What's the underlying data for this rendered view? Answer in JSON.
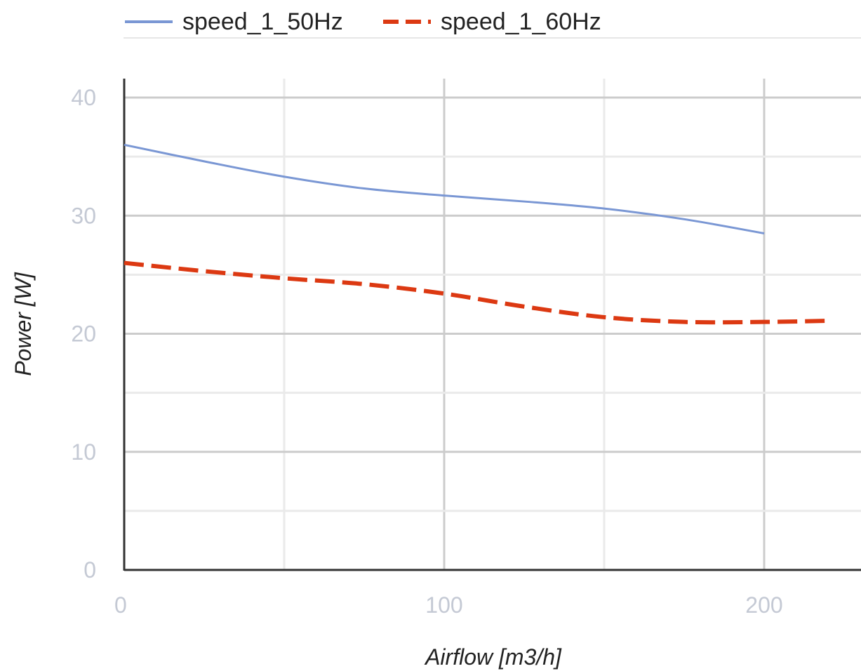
{
  "chart_data": {
    "type": "line",
    "xlabel": "Airflow [m3/h]",
    "ylabel": "Power [W]",
    "xlim": [
      0,
      230
    ],
    "ylim": [
      0,
      40
    ],
    "x_major_ticks": [
      0,
      100,
      200
    ],
    "x_tick_labels": [
      "0",
      "100",
      "200"
    ],
    "x_minor_gridlines": [
      50,
      150
    ],
    "y_major_ticks": [
      0,
      10,
      20,
      30,
      40
    ],
    "y_tick_labels": [
      "0",
      "10",
      "20",
      "30",
      "40"
    ],
    "y_minor_gridlines": [
      5,
      15,
      25,
      35
    ],
    "grid": true,
    "legend_position": "top",
    "series": [
      {
        "name": "speed_1_50Hz",
        "color": "#7a97d4",
        "line_style": "solid",
        "x": [
          0,
          25,
          50,
          75,
          100,
          125,
          150,
          175,
          200
        ],
        "y": [
          36,
          34.6,
          33.3,
          32.3,
          31.7,
          31.2,
          30.6,
          29.7,
          28.5
        ]
      },
      {
        "name": "speed_1_60Hz",
        "color": "#dc3912",
        "line_style": "dashed",
        "x": [
          0,
          25,
          50,
          75,
          100,
          125,
          150,
          175,
          200,
          220
        ],
        "y": [
          26,
          25.3,
          24.7,
          24.2,
          23.4,
          22.3,
          21.4,
          21.0,
          21.0,
          21.1
        ]
      }
    ]
  }
}
